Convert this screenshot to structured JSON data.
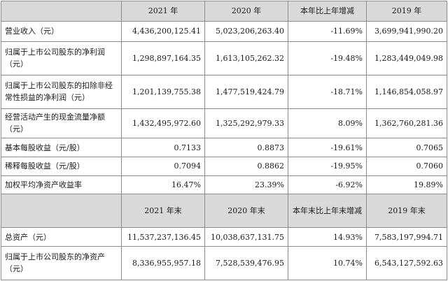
{
  "table": {
    "header1": [
      "",
      "2021 年",
      "2020 年",
      "本年比上年增减",
      "2019 年"
    ],
    "rows1": [
      {
        "label": "营业收入（元）",
        "v2021": "4,436,200,125.41",
        "v2020": "5,023,206,263.40",
        "change": "-11.69%",
        "v2019": "3,699,941,990.20"
      },
      {
        "label": "归属于上市公司股东的净利润（元）",
        "v2021": "1,298,897,164.35",
        "v2020": "1,613,105,262.32",
        "change": "-19.48%",
        "v2019": "1,283,449,049.98"
      },
      {
        "label": "归属于上市公司股东的扣除非经常性损益的净利润（元）",
        "v2021": "1,201,139,755.38",
        "v2020": "1,477,519,424.79",
        "change": "-18.71%",
        "v2019": "1,146,854,058.97"
      },
      {
        "label": "经营活动产生的现金流量净额（元）",
        "v2021": "1,432,495,972.60",
        "v2020": "1,325,292,979.33",
        "change": "8.09%",
        "v2019": "1,362,760,281.36"
      },
      {
        "label": "基本每股收益（元/股）",
        "v2021": "0.7133",
        "v2020": "0.8873",
        "change": "-19.61%",
        "v2019": "0.7065"
      },
      {
        "label": "稀释每股收益（元/股）",
        "v2021": "0.7094",
        "v2020": "0.8862",
        "change": "-19.95%",
        "v2019": "0.7060"
      },
      {
        "label": "加权平均净资产收益率",
        "v2021": "16.47%",
        "v2020": "23.39%",
        "change": "-6.92%",
        "v2019": "19.89%"
      }
    ],
    "header2": [
      "",
      "2021 年末",
      "2020 年末",
      "本年末比上年末增减",
      "2019 年末"
    ],
    "rows2": [
      {
        "label": "总资产（元）",
        "v2021": "11,537,237,136.45",
        "v2020": "10,038,637,131.75",
        "change": "14.93%",
        "v2019": "7,583,197,994.71"
      },
      {
        "label": "归属于上市公司股东的净资产（元）",
        "v2021": "8,336,955,957.18",
        "v2020": "7,528,539,476.95",
        "change": "10.74%",
        "v2019": "6,543,127,592.63"
      }
    ]
  }
}
